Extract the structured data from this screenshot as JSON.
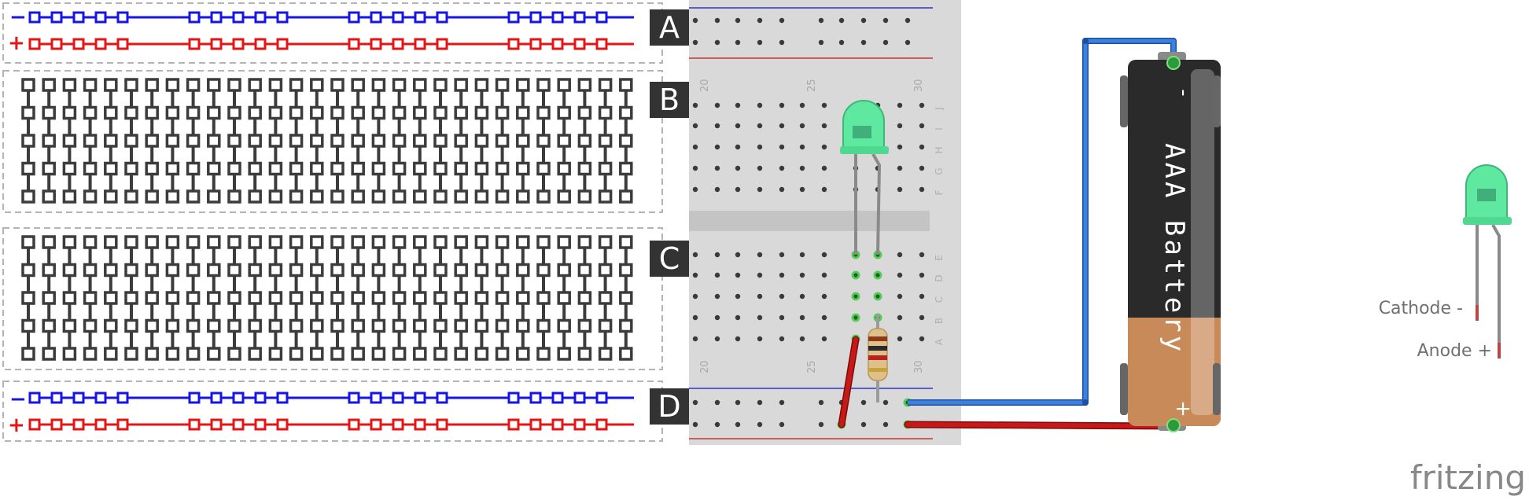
{
  "sections": [
    {
      "id": "A",
      "label": "A"
    },
    {
      "id": "B",
      "label": "B"
    },
    {
      "id": "C",
      "label": "C"
    },
    {
      "id": "D",
      "label": "D"
    }
  ],
  "rails": {
    "minus_symbol": "−",
    "plus_symbol": "+"
  },
  "breadboard": {
    "col_numbers": [
      "20",
      "25",
      "30"
    ],
    "row_letters_top": [
      "J",
      "I",
      "H",
      "G",
      "F"
    ],
    "row_letters_bottom": [
      "E",
      "D",
      "C",
      "B",
      "A"
    ]
  },
  "battery": {
    "label": "AAA Battery",
    "minus_terminal": "-",
    "plus_terminal": "+"
  },
  "legend": {
    "cathode": "Cathode -",
    "anode": "Anode +"
  },
  "brand": "fritzing",
  "colors": {
    "rail_negative": "#1515e6",
    "rail_positive": "#e61515",
    "strip": "#3c3c3c",
    "wire_blue": "#2d6fd0",
    "wire_red": "#b81414",
    "led": "#5fe8a0",
    "section_label_bg": "#333333"
  }
}
